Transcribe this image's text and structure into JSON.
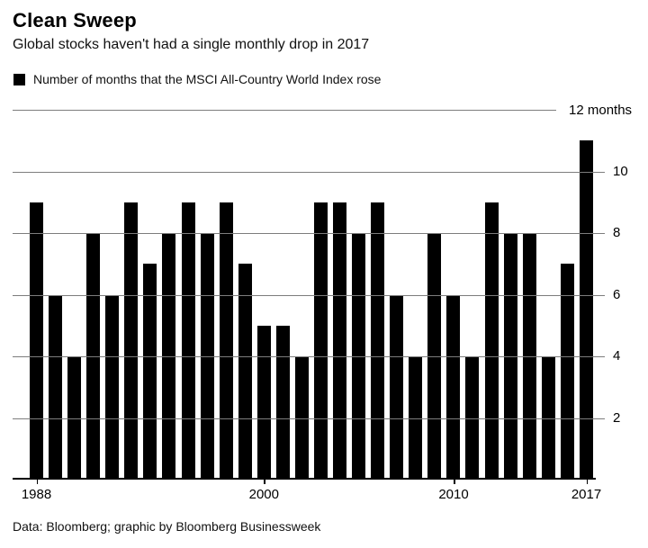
{
  "header": {
    "title": "Clean Sweep",
    "subtitle": "Global stocks haven't had a single monthly drop in 2017"
  },
  "legend": {
    "label": "Number of months that the MSCI All-Country World Index rose",
    "swatch_color": "#000000"
  },
  "chart_data": {
    "type": "bar",
    "title": "Clean Sweep",
    "x": [
      1988,
      1989,
      1990,
      1991,
      1992,
      1993,
      1994,
      1995,
      1996,
      1997,
      1998,
      1999,
      2000,
      2001,
      2002,
      2003,
      2004,
      2005,
      2006,
      2007,
      2008,
      2009,
      2010,
      2011,
      2012,
      2013,
      2014,
      2015,
      2016,
      2017
    ],
    "values": [
      9,
      6,
      4,
      8,
      6,
      9,
      7,
      8,
      9,
      8,
      9,
      7,
      5,
      5,
      4,
      9,
      9,
      8,
      9,
      6,
      4,
      8,
      6,
      4,
      9,
      8,
      8,
      4,
      7,
      11
    ],
    "series_label": "Number of months that the MSCI All-Country World Index rose",
    "ylim": [
      0,
      12
    ],
    "y_top_label": "12 months",
    "y_tick_values": [
      10,
      8,
      6,
      4,
      2
    ],
    "x_tick_years": [
      1988,
      2000,
      2010,
      2017
    ],
    "x_tick_labels": [
      "1988",
      "2000",
      "2010",
      "2017"
    ],
    "bar_color": "#000000",
    "grid_color": "#7d7d7d",
    "grid": "on",
    "legend_position": "top-left",
    "axis_side": "right"
  },
  "footer": {
    "source": "Data: Bloomberg; graphic by Bloomberg Businessweek"
  }
}
